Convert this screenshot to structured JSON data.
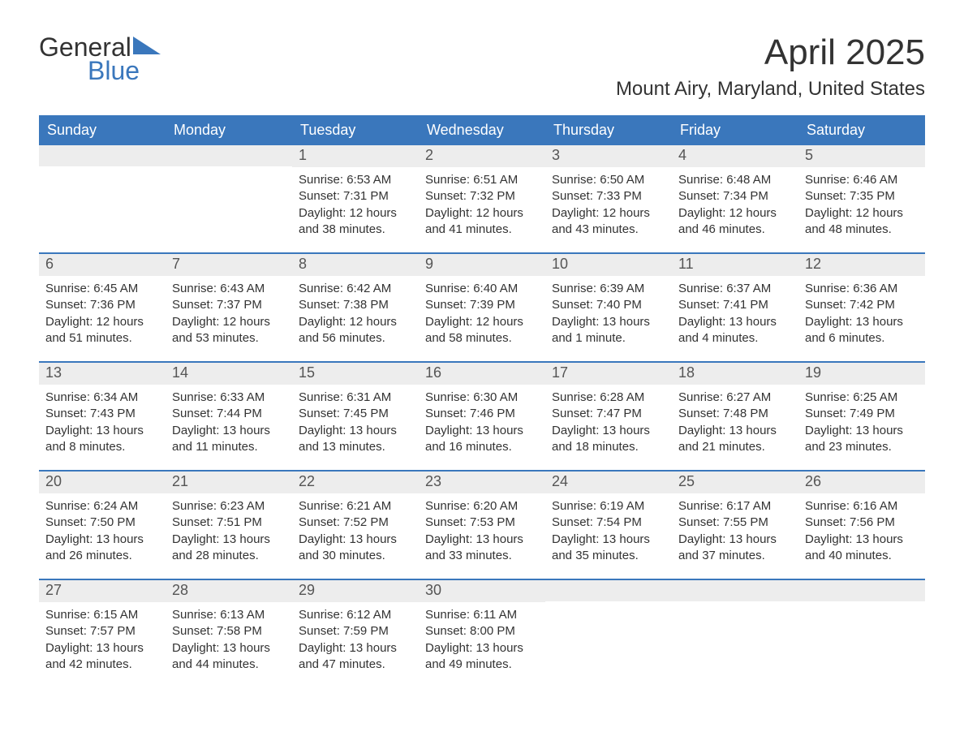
{
  "brand": {
    "word1": "General",
    "word2": "Blue",
    "word1_color": "#333333",
    "word2_color": "#3a77bc",
    "triangle_color": "#3a77bc"
  },
  "title": "April 2025",
  "location": "Mount Airy, Maryland, United States",
  "colors": {
    "header_bg": "#3a77bc",
    "header_text": "#ffffff",
    "daynum_bg": "#ededed",
    "body_text": "#333333",
    "rule": "#3a77bc",
    "page_bg": "#ffffff"
  },
  "day_headers": [
    "Sunday",
    "Monday",
    "Tuesday",
    "Wednesday",
    "Thursday",
    "Friday",
    "Saturday"
  ],
  "weeks": [
    [
      {
        "day": "",
        "sunrise": "",
        "sunset": "",
        "daylight": ""
      },
      {
        "day": "",
        "sunrise": "",
        "sunset": "",
        "daylight": ""
      },
      {
        "day": "1",
        "sunrise": "Sunrise: 6:53 AM",
        "sunset": "Sunset: 7:31 PM",
        "daylight": "Daylight: 12 hours and 38 minutes."
      },
      {
        "day": "2",
        "sunrise": "Sunrise: 6:51 AM",
        "sunset": "Sunset: 7:32 PM",
        "daylight": "Daylight: 12 hours and 41 minutes."
      },
      {
        "day": "3",
        "sunrise": "Sunrise: 6:50 AM",
        "sunset": "Sunset: 7:33 PM",
        "daylight": "Daylight: 12 hours and 43 minutes."
      },
      {
        "day": "4",
        "sunrise": "Sunrise: 6:48 AM",
        "sunset": "Sunset: 7:34 PM",
        "daylight": "Daylight: 12 hours and 46 minutes."
      },
      {
        "day": "5",
        "sunrise": "Sunrise: 6:46 AM",
        "sunset": "Sunset: 7:35 PM",
        "daylight": "Daylight: 12 hours and 48 minutes."
      }
    ],
    [
      {
        "day": "6",
        "sunrise": "Sunrise: 6:45 AM",
        "sunset": "Sunset: 7:36 PM",
        "daylight": "Daylight: 12 hours and 51 minutes."
      },
      {
        "day": "7",
        "sunrise": "Sunrise: 6:43 AM",
        "sunset": "Sunset: 7:37 PM",
        "daylight": "Daylight: 12 hours and 53 minutes."
      },
      {
        "day": "8",
        "sunrise": "Sunrise: 6:42 AM",
        "sunset": "Sunset: 7:38 PM",
        "daylight": "Daylight: 12 hours and 56 minutes."
      },
      {
        "day": "9",
        "sunrise": "Sunrise: 6:40 AM",
        "sunset": "Sunset: 7:39 PM",
        "daylight": "Daylight: 12 hours and 58 minutes."
      },
      {
        "day": "10",
        "sunrise": "Sunrise: 6:39 AM",
        "sunset": "Sunset: 7:40 PM",
        "daylight": "Daylight: 13 hours and 1 minute."
      },
      {
        "day": "11",
        "sunrise": "Sunrise: 6:37 AM",
        "sunset": "Sunset: 7:41 PM",
        "daylight": "Daylight: 13 hours and 4 minutes."
      },
      {
        "day": "12",
        "sunrise": "Sunrise: 6:36 AM",
        "sunset": "Sunset: 7:42 PM",
        "daylight": "Daylight: 13 hours and 6 minutes."
      }
    ],
    [
      {
        "day": "13",
        "sunrise": "Sunrise: 6:34 AM",
        "sunset": "Sunset: 7:43 PM",
        "daylight": "Daylight: 13 hours and 8 minutes."
      },
      {
        "day": "14",
        "sunrise": "Sunrise: 6:33 AM",
        "sunset": "Sunset: 7:44 PM",
        "daylight": "Daylight: 13 hours and 11 minutes."
      },
      {
        "day": "15",
        "sunrise": "Sunrise: 6:31 AM",
        "sunset": "Sunset: 7:45 PM",
        "daylight": "Daylight: 13 hours and 13 minutes."
      },
      {
        "day": "16",
        "sunrise": "Sunrise: 6:30 AM",
        "sunset": "Sunset: 7:46 PM",
        "daylight": "Daylight: 13 hours and 16 minutes."
      },
      {
        "day": "17",
        "sunrise": "Sunrise: 6:28 AM",
        "sunset": "Sunset: 7:47 PM",
        "daylight": "Daylight: 13 hours and 18 minutes."
      },
      {
        "day": "18",
        "sunrise": "Sunrise: 6:27 AM",
        "sunset": "Sunset: 7:48 PM",
        "daylight": "Daylight: 13 hours and 21 minutes."
      },
      {
        "day": "19",
        "sunrise": "Sunrise: 6:25 AM",
        "sunset": "Sunset: 7:49 PM",
        "daylight": "Daylight: 13 hours and 23 minutes."
      }
    ],
    [
      {
        "day": "20",
        "sunrise": "Sunrise: 6:24 AM",
        "sunset": "Sunset: 7:50 PM",
        "daylight": "Daylight: 13 hours and 26 minutes."
      },
      {
        "day": "21",
        "sunrise": "Sunrise: 6:23 AM",
        "sunset": "Sunset: 7:51 PM",
        "daylight": "Daylight: 13 hours and 28 minutes."
      },
      {
        "day": "22",
        "sunrise": "Sunrise: 6:21 AM",
        "sunset": "Sunset: 7:52 PM",
        "daylight": "Daylight: 13 hours and 30 minutes."
      },
      {
        "day": "23",
        "sunrise": "Sunrise: 6:20 AM",
        "sunset": "Sunset: 7:53 PM",
        "daylight": "Daylight: 13 hours and 33 minutes."
      },
      {
        "day": "24",
        "sunrise": "Sunrise: 6:19 AM",
        "sunset": "Sunset: 7:54 PM",
        "daylight": "Daylight: 13 hours and 35 minutes."
      },
      {
        "day": "25",
        "sunrise": "Sunrise: 6:17 AM",
        "sunset": "Sunset: 7:55 PM",
        "daylight": "Daylight: 13 hours and 37 minutes."
      },
      {
        "day": "26",
        "sunrise": "Sunrise: 6:16 AM",
        "sunset": "Sunset: 7:56 PM",
        "daylight": "Daylight: 13 hours and 40 minutes."
      }
    ],
    [
      {
        "day": "27",
        "sunrise": "Sunrise: 6:15 AM",
        "sunset": "Sunset: 7:57 PM",
        "daylight": "Daylight: 13 hours and 42 minutes."
      },
      {
        "day": "28",
        "sunrise": "Sunrise: 6:13 AM",
        "sunset": "Sunset: 7:58 PM",
        "daylight": "Daylight: 13 hours and 44 minutes."
      },
      {
        "day": "29",
        "sunrise": "Sunrise: 6:12 AM",
        "sunset": "Sunset: 7:59 PM",
        "daylight": "Daylight: 13 hours and 47 minutes."
      },
      {
        "day": "30",
        "sunrise": "Sunrise: 6:11 AM",
        "sunset": "Sunset: 8:00 PM",
        "daylight": "Daylight: 13 hours and 49 minutes."
      },
      {
        "day": "",
        "sunrise": "",
        "sunset": "",
        "daylight": ""
      },
      {
        "day": "",
        "sunrise": "",
        "sunset": "",
        "daylight": ""
      },
      {
        "day": "",
        "sunrise": "",
        "sunset": "",
        "daylight": ""
      }
    ]
  ]
}
